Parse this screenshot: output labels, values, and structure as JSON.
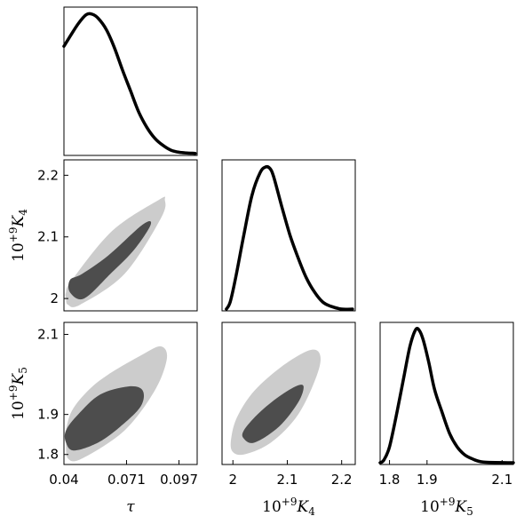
{
  "chart_data": {
    "type": "corner",
    "variables": [
      {
        "id": "tau",
        "label": "τ",
        "range": [
          0.04,
          0.106
        ],
        "ticks": [
          0.04,
          0.071,
          0.097
        ],
        "tick_labels": [
          "0.04",
          "0.071",
          "0.097"
        ]
      },
      {
        "id": "K4",
        "label_prefix": "10",
        "label_exp": "+9",
        "label_sym": "K",
        "label_sub": "4",
        "range": [
          1.98,
          2.225
        ],
        "ticks": [
          2.0,
          2.1,
          2.2
        ],
        "tick_labels": [
          "2",
          "2.1",
          "2.2"
        ]
      },
      {
        "id": "K5",
        "label_prefix": "10",
        "label_exp": "+9",
        "label_sym": "K",
        "label_sub": "5",
        "range": [
          1.775,
          2.13
        ],
        "ticks": [
          1.8,
          1.9,
          2.1
        ],
        "tick_labels": [
          "1.8",
          "1.9",
          "2.1"
        ]
      }
    ],
    "grid": false,
    "marginals": [
      {
        "var": "tau",
        "x": [
          0.04,
          0.043,
          0.047,
          0.051,
          0.054,
          0.057,
          0.061,
          0.065,
          0.069,
          0.073,
          0.077,
          0.081,
          0.085,
          0.089,
          0.093,
          0.097,
          0.101,
          0.105
        ],
        "y": [
          0.77,
          0.84,
          0.93,
          0.996,
          1.0,
          0.97,
          0.89,
          0.76,
          0.6,
          0.45,
          0.3,
          0.19,
          0.11,
          0.06,
          0.025,
          0.01,
          0.005,
          0.002
        ]
      },
      {
        "var": "K4",
        "x": [
          1.988,
          1.995,
          2.005,
          2.02,
          2.035,
          2.05,
          2.06,
          2.068,
          2.075,
          2.09,
          2.105,
          2.12,
          2.135,
          2.15,
          2.165,
          2.18,
          2.2,
          2.22
        ],
        "y": [
          0.0,
          0.05,
          0.22,
          0.52,
          0.8,
          0.96,
          1.0,
          0.99,
          0.93,
          0.72,
          0.52,
          0.36,
          0.22,
          0.12,
          0.05,
          0.02,
          0.0,
          0.0
        ]
      },
      {
        "var": "K5",
        "x": [
          1.775,
          1.785,
          1.8,
          1.82,
          1.84,
          1.855,
          1.87,
          1.88,
          1.89,
          1.905,
          1.92,
          1.94,
          1.96,
          1.98,
          2.0,
          2.02,
          2.05,
          2.13
        ],
        "y": [
          0.0,
          0.02,
          0.12,
          0.38,
          0.67,
          0.88,
          1.0,
          0.99,
          0.92,
          0.75,
          0.55,
          0.38,
          0.22,
          0.12,
          0.06,
          0.03,
          0.005,
          0.0
        ]
      }
    ],
    "joint": [
      {
        "x": "tau",
        "y": "K4",
        "outer": [
          [
            0.041,
            2.0
          ],
          [
            0.042,
            1.99
          ],
          [
            0.048,
            1.99
          ],
          [
            0.07,
            2.04
          ],
          [
            0.088,
            2.13
          ],
          [
            0.09,
            2.16
          ],
          [
            0.087,
            2.16
          ],
          [
            0.064,
            2.11
          ],
          [
            0.044,
            2.03
          ],
          [
            0.041,
            2.01
          ]
        ],
        "inner": [
          [
            0.043,
            2.01
          ],
          [
            0.05,
            2.0
          ],
          [
            0.063,
            2.04
          ],
          [
            0.075,
            2.08
          ],
          [
            0.083,
            2.12
          ],
          [
            0.079,
            2.12
          ],
          [
            0.062,
            2.07
          ],
          [
            0.049,
            2.04
          ],
          [
            0.043,
            2.03
          ]
        ]
      },
      {
        "x": "tau",
        "y": "K5",
        "outer": [
          [
            0.041,
            1.83
          ],
          [
            0.042,
            1.79
          ],
          [
            0.049,
            1.79
          ],
          [
            0.07,
            1.86
          ],
          [
            0.085,
            1.96
          ],
          [
            0.091,
            2.04
          ],
          [
            0.088,
            2.07
          ],
          [
            0.079,
            2.05
          ],
          [
            0.062,
            2.0
          ],
          [
            0.052,
            1.96
          ],
          [
            0.044,
            1.91
          ],
          [
            0.041,
            1.86
          ]
        ],
        "inner": [
          [
            0.041,
            1.83
          ],
          [
            0.045,
            1.81
          ],
          [
            0.057,
            1.83
          ],
          [
            0.068,
            1.87
          ],
          [
            0.078,
            1.92
          ],
          [
            0.079,
            1.96
          ],
          [
            0.072,
            1.97
          ],
          [
            0.058,
            1.95
          ],
          [
            0.047,
            1.9
          ],
          [
            0.041,
            1.86
          ]
        ]
      },
      {
        "x": "K4",
        "y": "K5",
        "outer": [
          [
            1.998,
            1.81
          ],
          [
            2.02,
            1.8
          ],
          [
            2.07,
            1.83
          ],
          [
            2.12,
            1.9
          ],
          [
            2.155,
            2.0
          ],
          [
            2.16,
            2.05
          ],
          [
            2.14,
            2.06
          ],
          [
            2.09,
            2.02
          ],
          [
            2.04,
            1.96
          ],
          [
            2.01,
            1.9
          ],
          [
            1.998,
            1.85
          ]
        ],
        "inner": [
          [
            2.02,
            1.84
          ],
          [
            2.04,
            1.83
          ],
          [
            2.085,
            1.87
          ],
          [
            2.12,
            1.93
          ],
          [
            2.13,
            1.97
          ],
          [
            2.115,
            1.97
          ],
          [
            2.08,
            1.94
          ],
          [
            2.045,
            1.9
          ],
          [
            2.02,
            1.86
          ]
        ]
      }
    ],
    "colors": {
      "outer": "#cccccc",
      "inner": "#4d4d4d",
      "line": "#000000"
    }
  }
}
